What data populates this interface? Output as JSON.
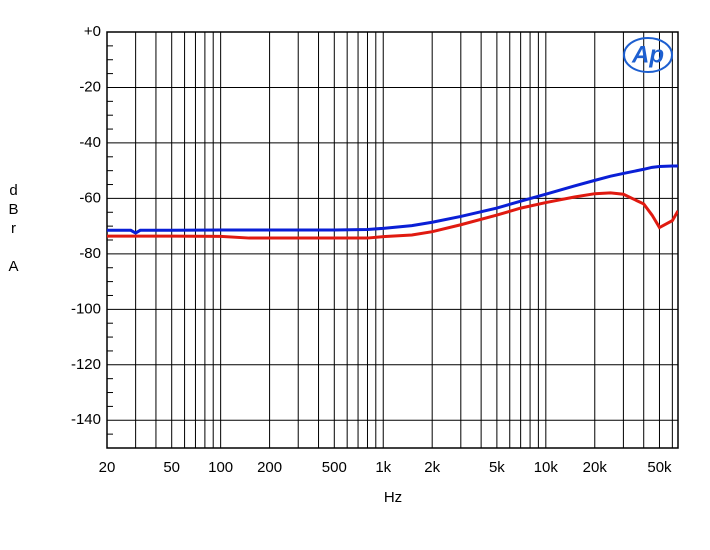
{
  "chart_data": {
    "type": "line",
    "xlabel": "Hz",
    "ylabel": "dBr A",
    "logo": "Ap",
    "xlog": true,
    "grid": true,
    "xlim": [
      20,
      65000
    ],
    "ylim": [
      -150,
      0
    ],
    "xticks": [
      20,
      50,
      100,
      200,
      500,
      {
        "value": 1000,
        "label": "1k"
      },
      {
        "value": 2000,
        "label": "2k"
      },
      {
        "value": 5000,
        "label": "5k"
      },
      {
        "value": 10000,
        "label": "10k"
      },
      {
        "value": 20000,
        "label": "20k"
      },
      {
        "value": 50000,
        "label": "50k"
      }
    ],
    "xminor": [
      30,
      40,
      60,
      70,
      80,
      90,
      300,
      400,
      600,
      700,
      800,
      900,
      3000,
      4000,
      6000,
      7000,
      8000,
      9000,
      30000,
      40000,
      60000
    ],
    "yticks": [
      {
        "value": 0,
        "label": "+0"
      },
      -20,
      -40,
      -60,
      -80,
      -100,
      -120,
      -140
    ],
    "yminor": [
      -5,
      -10,
      -15,
      -25,
      -30,
      -35,
      -45,
      -50,
      -55,
      -65,
      -70,
      -75,
      -85,
      -90,
      -95,
      -105,
      -110,
      -115,
      -125,
      -130,
      -135,
      -145
    ],
    "x": [
      20,
      28,
      30,
      32,
      50,
      100,
      150,
      200,
      500,
      800,
      1000,
      1500,
      2000,
      3000,
      5000,
      7000,
      10000,
      15000,
      20000,
      25000,
      30000,
      40000,
      45000,
      50000,
      60000,
      65000
    ],
    "series": [
      {
        "color": "#0a1fd6",
        "values": [
          -71.5,
          -71.5,
          -72.5,
          -71.5,
          -71.5,
          -71.4,
          -71.4,
          -71.4,
          -71.4,
          -71.2,
          -70.8,
          -69.8,
          -68.6,
          -66.5,
          -63.5,
          -61,
          -58.5,
          -55.5,
          -53.5,
          -52,
          -51,
          -49.5,
          -48.8,
          -48.5,
          -48.3,
          -48.3
        ]
      },
      {
        "color": "#e01a10",
        "values": [
          -73.6,
          -73.6,
          -73.6,
          -73.6,
          -73.6,
          -73.7,
          -74.3,
          -74.3,
          -74.3,
          -74.3,
          -73.8,
          -73.2,
          -72,
          -69.5,
          -66,
          -63.5,
          -61.5,
          -59.5,
          -58.3,
          -58,
          -58.5,
          -62,
          -66,
          -70.5,
          -68,
          -64.5
        ]
      }
    ]
  }
}
